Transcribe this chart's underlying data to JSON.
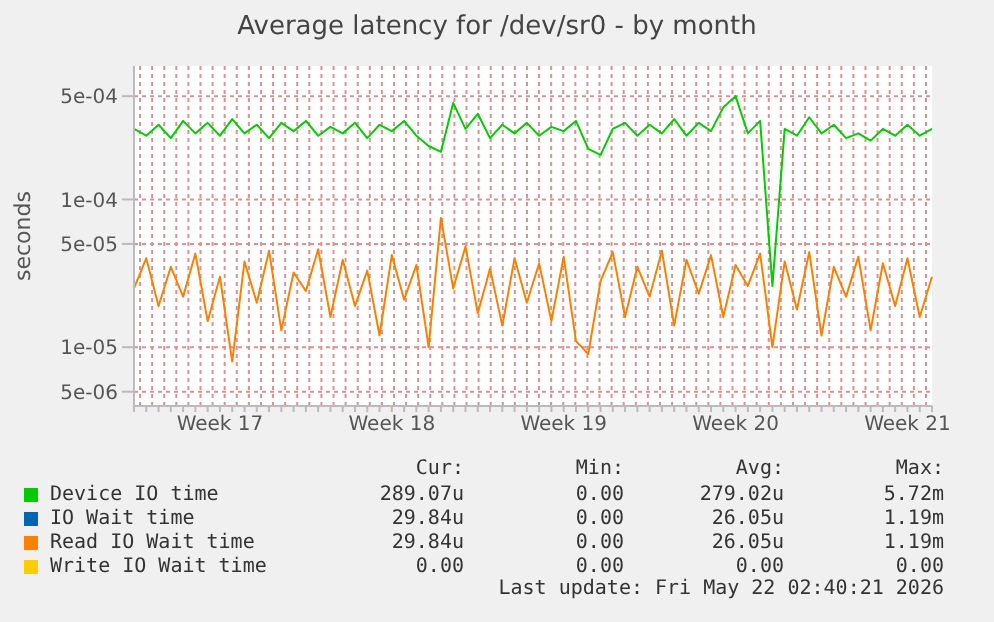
{
  "chart_data": {
    "type": "line",
    "title": "Average latency for /dev/sr0 - by month",
    "ylabel": "seconds",
    "log": "y",
    "grid": true,
    "legend": "bottom",
    "marker": "none",
    "line_style": "solid",
    "categories": [
      null,
      null,
      null,
      null,
      null,
      null,
      null,
      "Week 17",
      null,
      null,
      null,
      null,
      null,
      null,
      null,
      null,
      null,
      null,
      null,
      null,
      null,
      "Week 18",
      null,
      null,
      null,
      null,
      null,
      null,
      null,
      null,
      null,
      null,
      null,
      null,
      null,
      "Week 19",
      null,
      null,
      null,
      null,
      null,
      null,
      null,
      null,
      null,
      null,
      null,
      null,
      null,
      "Week 20",
      null,
      null,
      null,
      null,
      null,
      null,
      null,
      null,
      null,
      null,
      null,
      null,
      null,
      "Week 21",
      null,
      null
    ],
    "ylim": [
      4e-06,
      0.0008
    ],
    "yticks": [
      {
        "value": 5e-06,
        "label": "5e-06"
      },
      {
        "value": 1e-05,
        "label": "1e-05"
      },
      {
        "value": 5e-05,
        "label": "5e-05"
      },
      {
        "value": 0.0001,
        "label": "1e-04"
      },
      {
        "value": 0.0005,
        "label": "5e-04"
      }
    ],
    "series": [
      {
        "name": "Device IO time",
        "color": "#00cc00",
        "values": [
          0.0003,
          0.00027,
          0.00032,
          0.00026,
          0.00034,
          0.00028,
          0.00033,
          0.00027,
          0.00035,
          0.00028,
          0.00032,
          0.00026,
          0.00033,
          0.00029,
          0.00034,
          0.00027,
          0.00031,
          0.00028,
          0.00033,
          0.00026,
          0.00032,
          0.00029,
          0.00034,
          0.00027,
          0.00023,
          0.00021,
          0.00045,
          0.0003,
          0.00038,
          0.00026,
          0.00032,
          0.00028,
          0.00033,
          0.00027,
          0.00031,
          0.00029,
          0.00034,
          0.00022,
          0.0002,
          0.0003,
          0.00033,
          0.00027,
          0.00032,
          0.00028,
          0.00035,
          0.00027,
          0.00033,
          0.00029,
          0.00042,
          0.0005,
          0.00028,
          0.00034,
          2.6e-05,
          0.0003,
          0.00027,
          0.00036,
          0.00028,
          0.00032,
          0.00026,
          0.00028,
          0.00025,
          0.0003,
          0.00027,
          0.00032,
          0.00027,
          0.0003
        ]
      },
      {
        "name": "IO Wait time",
        "color": "#0066b3",
        "values": [
          null,
          null,
          null,
          null,
          null,
          null,
          null,
          null,
          null,
          null,
          null,
          null,
          null,
          null,
          null,
          null,
          null,
          null,
          null,
          null,
          null,
          null,
          null,
          null,
          null,
          null,
          null,
          null,
          null,
          null,
          null,
          null,
          null,
          null,
          null,
          null,
          null,
          null,
          null,
          null,
          null,
          null,
          null,
          null,
          null,
          null,
          null,
          null,
          null,
          null,
          null,
          null,
          null,
          null,
          null,
          null,
          null,
          null,
          null,
          null,
          null,
          null,
          null,
          null,
          null,
          null
        ]
      },
      {
        "name": "Read IO Wait time",
        "color": "#ff8000",
        "values": [
          2.5e-05,
          4e-05,
          1.9e-05,
          3.5e-05,
          2.2e-05,
          4.3e-05,
          1.5e-05,
          3e-05,
          8e-06,
          3.8e-05,
          2e-05,
          4.5e-05,
          1.3e-05,
          3.2e-05,
          2.4e-05,
          4.6e-05,
          1.6e-05,
          3.9e-05,
          1.9e-05,
          3.3e-05,
          1.2e-05,
          4.2e-05,
          2.1e-05,
          3.6e-05,
          1e-05,
          7.5e-05,
          2.5e-05,
          4.8e-05,
          1.7e-05,
          3.4e-05,
          1.4e-05,
          4e-05,
          2e-05,
          3.7e-05,
          1.5e-05,
          4.1e-05,
          1.1e-05,
          9e-06,
          2.8e-05,
          4.4e-05,
          1.6e-05,
          3.5e-05,
          2.2e-05,
          4.5e-05,
          1.4e-05,
          3.9e-05,
          2.3e-05,
          4.2e-05,
          1.6e-05,
          3.6e-05,
          2.6e-05,
          4.3e-05,
          1e-05,
          3.8e-05,
          1.8e-05,
          4.4e-05,
          1.2e-05,
          3.5e-05,
          2.2e-05,
          4.1e-05,
          1.3e-05,
          3.7e-05,
          1.9e-05,
          4e-05,
          1.6e-05,
          3e-05
        ]
      },
      {
        "name": "Write IO Wait time",
        "color": "#ffcc00",
        "values": [
          null,
          null,
          null,
          null,
          null,
          null,
          null,
          null,
          null,
          null,
          null,
          null,
          null,
          null,
          null,
          null,
          null,
          null,
          null,
          null,
          null,
          null,
          null,
          null,
          null,
          null,
          null,
          null,
          null,
          null,
          null,
          null,
          null,
          null,
          null,
          null,
          null,
          null,
          null,
          null,
          null,
          null,
          null,
          null,
          null,
          null,
          null,
          null,
          null,
          null,
          null,
          null,
          null,
          null,
          null,
          null,
          null,
          null,
          null,
          null,
          null,
          null,
          null,
          null,
          null,
          null
        ]
      }
    ],
    "annotations": [
      "Cur:",
      "Min:",
      "Avg:",
      "Max:",
      "289.07u",
      "0.00",
      "279.02u",
      "5.72m",
      "29.84u",
      "0.00",
      "26.05u",
      "1.19m",
      "29.84u",
      "0.00",
      "26.05u",
      "1.19m",
      "0.00",
      "0.00",
      "0.00",
      "0.00",
      "Last update: Fri May 22 02:40:21 2026"
    ]
  }
}
